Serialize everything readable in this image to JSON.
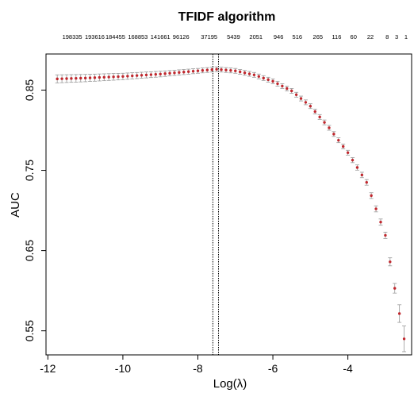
{
  "chart_data": {
    "type": "scatter",
    "title": "TFIDF algorithm",
    "xlabel": "Log(λ)",
    "ylabel": "AUC",
    "xlim": [
      -12.05,
      -2.3
    ],
    "ylim": [
      0.52,
      0.895
    ],
    "x_ticks": [
      -12,
      -10,
      -8,
      -6,
      -4
    ],
    "x_tick_labels": [
      "-12",
      "-10",
      "-8",
      "-6",
      "-4"
    ],
    "y_ticks": [
      0.55,
      0.65,
      0.75,
      0.85
    ],
    "y_tick_labels": [
      "0.55",
      "0.65",
      "0.75",
      "0.85"
    ],
    "top_axis_labels": [
      {
        "x": -11.35,
        "label": "198335"
      },
      {
        "x": -10.75,
        "label": "193616"
      },
      {
        "x": -10.2,
        "label": "184455"
      },
      {
        "x": -9.6,
        "label": "168853"
      },
      {
        "x": -9.0,
        "label": "141661"
      },
      {
        "x": -8.45,
        "label": "96126"
      },
      {
        "x": -7.7,
        "label": "37195"
      },
      {
        "x": -7.05,
        "label": "5439"
      },
      {
        "x": -6.45,
        "label": "2051"
      },
      {
        "x": -5.85,
        "label": "946"
      },
      {
        "x": -5.35,
        "label": "516"
      },
      {
        "x": -4.8,
        "label": "265"
      },
      {
        "x": -4.3,
        "label": "116"
      },
      {
        "x": -3.85,
        "label": "60"
      },
      {
        "x": -3.4,
        "label": "22"
      },
      {
        "x": -2.95,
        "label": "8"
      },
      {
        "x": -2.7,
        "label": "3"
      },
      {
        "x": -2.45,
        "label": "1"
      }
    ],
    "vlines": [
      -7.6,
      -7.45
    ],
    "series": [
      {
        "style": "points with error bars",
        "x_start": -11.75,
        "x_end": -2.5,
        "x_step": 0.125,
        "curve_points": [
          {
            "x": -11.75,
            "y": 0.864
          },
          {
            "x": -11.0,
            "y": 0.865
          },
          {
            "x": -10.0,
            "y": 0.867
          },
          {
            "x": -9.0,
            "y": 0.87
          },
          {
            "x": -8.0,
            "y": 0.874
          },
          {
            "x": -7.5,
            "y": 0.876
          },
          {
            "x": -7.0,
            "y": 0.874
          },
          {
            "x": -6.5,
            "y": 0.869
          },
          {
            "x": -6.0,
            "y": 0.861
          },
          {
            "x": -5.5,
            "y": 0.849
          },
          {
            "x": -5.0,
            "y": 0.83
          },
          {
            "x": -4.5,
            "y": 0.803
          },
          {
            "x": -4.0,
            "y": 0.772
          },
          {
            "x": -3.5,
            "y": 0.735
          },
          {
            "x": -3.0,
            "y": 0.669
          },
          {
            "x": -2.75,
            "y": 0.603
          },
          {
            "x": -2.5,
            "y": 0.54
          }
        ],
        "error_points": [
          {
            "x": -11.75,
            "e": 0.005
          },
          {
            "x": -10.0,
            "e": 0.004
          },
          {
            "x": -8.0,
            "e": 0.003
          },
          {
            "x": -6.0,
            "e": 0.003
          },
          {
            "x": -4.0,
            "e": 0.003
          },
          {
            "x": -3.0,
            "e": 0.004
          },
          {
            "x": -2.75,
            "e": 0.006
          },
          {
            "x": -2.5,
            "e": 0.016
          }
        ],
        "point_color": "#c0272d",
        "errorbar_color": "#999999"
      }
    ]
  }
}
